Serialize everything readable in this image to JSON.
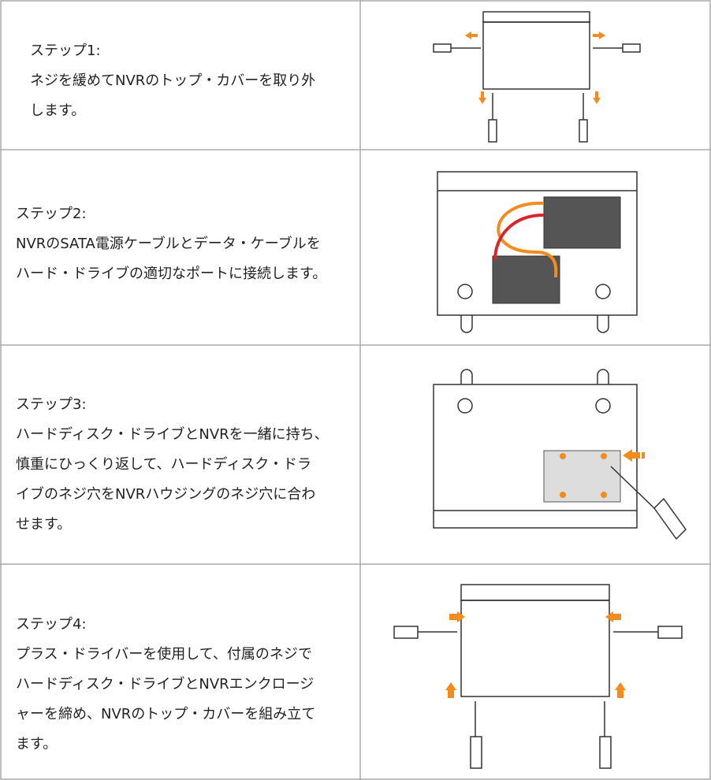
{
  "steps": [
    {
      "title": "ステップ1:",
      "lines": [
        "ネジを緩めてNVRのトップ・カバーを取り外",
        "します。"
      ]
    },
    {
      "title": "ステップ2:",
      "lines": [
        "NVRのSATA電源ケーブルとデータ・ケーブルを",
        "ハード・ドライブの適切なポートに接続します。"
      ]
    },
    {
      "title": "ステップ3:",
      "lines": [
        "ハードディスク・ドライブとNVRを一緒に持ち、",
        "慎重にひっくり返して、ハードディスク・ドラ",
        "イブのネジ穴をNVRハウジングのネジ穴に合わ",
        "せます。"
      ]
    },
    {
      "title": "ステップ4:",
      "lines": [
        "プラス・ドライバーを使用して、付属のネジで",
        "ハードディスク・ドライブとNVRエンクロージ",
        "ャーを締め、NVRのトップ・カバーを組み立て",
        "ます。"
      ]
    }
  ]
}
